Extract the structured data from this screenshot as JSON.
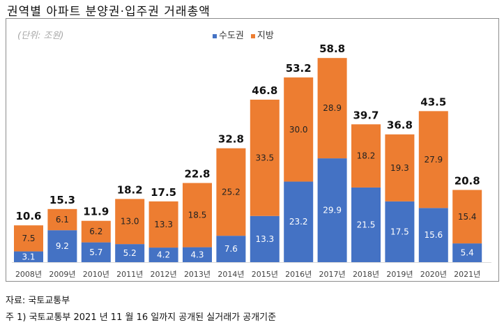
{
  "title": "권역별 아파트 분양권·입주권 거래총액",
  "source": "자료: 국토교통부",
  "note": "주 1) 국토교통부 2021 년 11 월 16 일까지 공개된 실거래가 공개기준",
  "chart_data": {
    "type": "bar",
    "stacked": true,
    "title": "",
    "unit_label": "(단위: 조원)",
    "legend_position": "top-center",
    "grid": false,
    "ylim": [
      0,
      60
    ],
    "categories": [
      "2008년",
      "2009년",
      "2010년",
      "2011년",
      "2012년",
      "2013년",
      "2014년",
      "2015년",
      "2016년",
      "2017년",
      "2018년",
      "2019년",
      "2020년",
      "2021년"
    ],
    "series": [
      {
        "name": "수도권",
        "color": "#4472C4",
        "values": [
          3.1,
          9.2,
          5.7,
          5.2,
          4.2,
          4.3,
          7.6,
          13.3,
          23.2,
          29.9,
          21.5,
          17.5,
          15.6,
          5.4
        ]
      },
      {
        "name": "지방",
        "color": "#ED7D31",
        "values": [
          7.5,
          6.1,
          6.2,
          13.0,
          13.3,
          18.5,
          25.2,
          33.5,
          30.0,
          28.9,
          18.2,
          19.3,
          27.9,
          15.4
        ]
      }
    ],
    "totals": [
      10.6,
      15.3,
      11.9,
      18.2,
      17.5,
      22.8,
      32.8,
      46.8,
      53.2,
      58.8,
      39.7,
      36.8,
      43.5,
      20.8
    ]
  }
}
